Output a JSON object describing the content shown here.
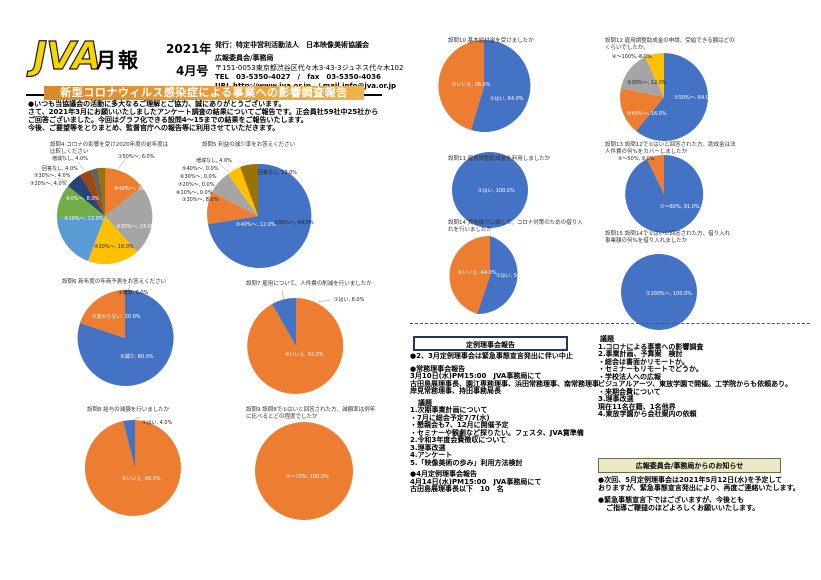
{
  "header": {
    "logo": "JVA",
    "monthly": "月報",
    "year": "2021年",
    "issue": "4月号",
    "publisher_lines": [
      "発行：特定非営利活動法人　日本映像美術協議会",
      "広報委員会/事務局",
      "〒151-0053東京都渋谷区代々木3-43-3ジュネス代々木102",
      "TEL　03-5350-4027　/　fax　03-5350-4036",
      "URL http://www.jva.or.jp　/ mail info@jva.or.jp"
    ]
  },
  "title": "新型コロナウィルス感染症による事業への影響調査報告",
  "intro": [
    "●いつも当協議会の活動に多大なるご理解とご協力、誠にありがとうございます。",
    "さて、2021年3月にお願いいたしましたアンケート調査の結果についてご報告です。正会員社59社中25社から",
    "ご回答ございました。今回はグラフ化できる設問4～15までの結果をご報告いたします。",
    "今後、ご要望等をとりまとめ、監督官庁への報告等に利用させていただきます。"
  ],
  "charts": {
    "q4": {
      "title": "設問4 コロナの影響を受け2020年度の前年度は比較しください",
      "labels": [
        "①50%～, 6.0%",
        "②40%～, 20.0%",
        "③30%～, 24.0%",
        "④20%～, 16.0%",
        "⑤10%～, 12.0%",
        "⑥0%～, 8.0%",
        "⑦20%～, 4.0%",
        "増減なし, 4.0%",
        "回答なし, 4.0%",
        "⑦30%～, 4.0%"
      ]
    },
    "q5": {
      "title": "設問5 利益の減少率をお答えください",
      "labels": [
        "①50%～, 64.0%",
        "②40%～, 12.0%",
        "③30%～, 8.0%",
        "増減なし, 4.0%",
        "回答なし, 12.0%",
        "⑤40%～, 0.0%",
        "⑥30%～, 0.0%",
        "⑦20%～, 0.0%",
        "⑧10%～, 0.0%"
      ]
    },
    "q6": {
      "title": "設問6 新年度の年商予測をお答えください",
      "labels": [
        "①増加, 0.0%",
        "②変わらない, 20.0%",
        "③減少, 80.0%"
      ]
    },
    "q7": {
      "title": "設問7 雇用について、人件費の削減を行いましたか",
      "labels": [
        "①はい, 8.0%",
        "②いいえ, 92.0%"
      ]
    },
    "q8": {
      "title": "設問8 給与の減額を行いましたか",
      "labels": [
        "①はい, 4.0%",
        "②いいえ, 96.0%"
      ]
    },
    "q9": {
      "title": "設問9 設問8で①はいと回答された方、減額率は例年に比べるとどの程度でしたか",
      "labels": [
        "①～10%, 100.0%"
      ]
    },
    "q10": {
      "title": "設問10 基本給付金を受けましたか",
      "labels": [
        "①はい, 64.0%",
        "②いいえ, 36.0%"
      ]
    },
    "q11": {
      "title": "設問11 雇用調整助成金を利用しましたか",
      "labels": [
        "①はい, 100.0%"
      ]
    },
    "q12": {
      "title": "設問12 雇用調整助成金の申請、受給できる額はどのくらいでしたか。",
      "labels": [
        "①50%～, 64.0%",
        "②40%～, 16.0%",
        "③30%～, 12.0%",
        "④～100%, 8.0%"
      ]
    },
    "q13": {
      "title": "設問13 設問12で①はいと回答された方、助成金は法人件費の何%をカバーしましたか",
      "labels": [
        "①～60%, 91.0%",
        "②～50%, 9.0%"
      ]
    },
    "q14": {
      "title": "設問14 資金繰りに関して、コロナ対策のための借り入れを行いましたか",
      "labels": [
        "①はい, 56.0%",
        "②いいえ, 44.0%"
      ]
    },
    "q15": {
      "title": "設問15 設問14で①はいと回答された方、借り入れ事業額の何%を借り入れましたか",
      "labels": [
        "①100%～, 100.0%"
      ]
    }
  },
  "board_meeting": {
    "header": "定例理事会報告",
    "lines": [
      "●2、3月定例理事会は緊急事態宣言発出に伴い中止",
      "",
      "●常務理事会報告",
      "3月10日(水)PM15:00　JVA事務局にて",
      "古田島展理事長、園江専務理事、浜田常務理事、南常務理事",
      "岸見常務理事、持田事務局長",
      "",
      "議題",
      "1.次期事業計画について",
      "・7月に総会予定7/7(水)",
      "・懇親会も7、12月に開催予定",
      "・セミナーや観劇など探りたい。フェスタ、JVA賞準備",
      "2.令和3年度会費徴収について",
      "3.理事改選",
      "4.アンケート",
      "5.「映像美術の歩み」利用方法検討",
      "",
      "●4月定例理事会報告",
      "4月14日(水)PM15:00　JVA事務局にて",
      "古田島展理事長以下　10　名"
    ],
    "agenda": [
      "議題",
      "1.コロナによる事業への影響調査",
      "2.事業計画、予算案　検討",
      "・総会は書面かリモートか。",
      "・セミナーもリモートでどうか。",
      "・学校法人への広報",
      "ビジュアルアーツ、東放学園で開催。工学院からも依頼あり。",
      "・来期会費について",
      "3.理事改選",
      "現在11名在籍、1名他界",
      "4.東放学園から会社案内の依頼"
    ]
  },
  "notice": {
    "header": "広報委員会/事務局からのお知らせ",
    "lines": [
      "●次回、5月定例理事会は2021年5月12日(水)を予定して",
      "おりますが、緊急事態宣言発出により、再度ご連絡いたします。",
      "",
      "●緊急事態宣言下ではございますが、今後とも",
      "ご指導ご鞭撻のほどよろしくお願いいたします。"
    ]
  },
  "colors": {
    "blue": "#4472c4",
    "orange": "#ed7d31",
    "gray": "#a5a5a5",
    "yellow": "#ffc000",
    "lightblue": "#5b9bd5",
    "green": "#70ad47",
    "navy": "#264478",
    "brown": "#9e480e",
    "darkgray": "#636363",
    "olive": "#997300"
  }
}
